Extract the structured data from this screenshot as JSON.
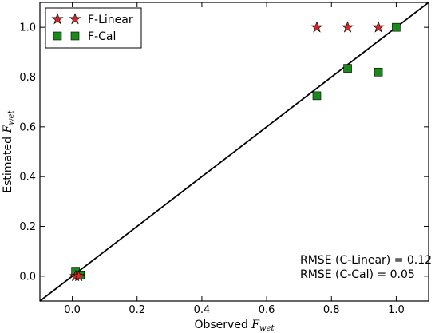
{
  "chart_data": {
    "type": "scatter",
    "xlabel": {
      "text": "Observed ",
      "math": "F",
      "sub": "wet"
    },
    "ylabel": {
      "text": "Estimated ",
      "math": "F",
      "sub": "wet"
    },
    "xlim": [
      -0.1,
      1.1
    ],
    "ylim": [
      -0.1,
      1.1
    ],
    "xticks": [
      "0.0",
      "0.2",
      "0.4",
      "0.6",
      "0.8",
      "1.0"
    ],
    "yticks": [
      "0.0",
      "0.2",
      "0.4",
      "0.6",
      "0.8",
      "1.0"
    ],
    "grid": false,
    "legend": {
      "placement": "top-left"
    },
    "reference_line": {
      "from": [
        -0.1,
        -0.1
      ],
      "to": [
        1.1,
        1.1
      ],
      "color": "#000000"
    },
    "series": [
      {
        "name": "F-Linear",
        "marker": "star",
        "color": "#d62728",
        "x": [
          0.01,
          0.02,
          0.755,
          0.85,
          0.945
        ],
        "y": [
          0.0,
          0.0,
          1.0,
          1.0,
          1.0
        ]
      },
      {
        "name": "F-Cal",
        "marker": "square",
        "color": "#1a8a1a",
        "x": [
          0.01,
          0.025,
          0.755,
          0.85,
          0.945,
          1.0
        ],
        "y": [
          0.02,
          0.005,
          0.725,
          0.835,
          0.82,
          1.0
        ]
      }
    ],
    "annotations": [
      "RMSE (C-Linear) = 0.12",
      "RMSE (C-Cal) = 0.05"
    ]
  }
}
